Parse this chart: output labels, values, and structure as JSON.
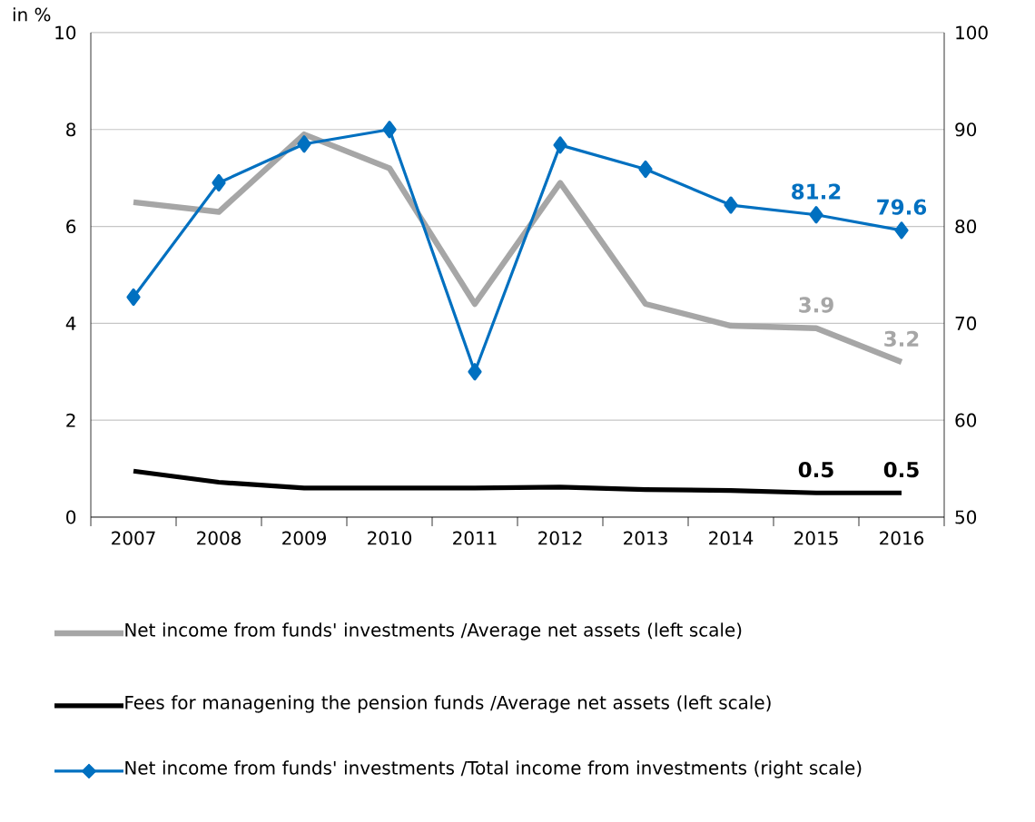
{
  "chart_data": {
    "type": "line",
    "ylabel": "in %",
    "categories": [
      "2007",
      "2008",
      "2009",
      "2010",
      "2011",
      "2012",
      "2013",
      "2014",
      "2015",
      "2016"
    ],
    "series": [
      {
        "name": "Net income from funds' investments /Average net assets (left scale)",
        "color": "#a6a6a6",
        "values": [
          6.5,
          6.3,
          7.9,
          7.2,
          4.4,
          6.9,
          4.4,
          3.95,
          3.9,
          3.2
        ],
        "value_labels": [
          null,
          null,
          null,
          null,
          null,
          null,
          null,
          null,
          "3.9",
          "3.2"
        ],
        "marker": "none"
      },
      {
        "name": "Fees for managening the pension funds /Average net assets (left scale)",
        "color": "#000000",
        "values": [
          0.95,
          0.72,
          0.6,
          0.6,
          0.6,
          0.62,
          0.57,
          0.55,
          0.5,
          0.5
        ],
        "value_labels": [
          null,
          null,
          null,
          null,
          null,
          null,
          null,
          null,
          "0.5",
          "0.5"
        ],
        "marker": "none"
      },
      {
        "name": "Net income from funds' investments /Total income from investments (right scale)",
        "color": "#0070c0",
        "values": [
          72.7,
          84.5,
          88.5,
          90,
          65,
          88.4,
          85.9,
          82.2,
          81.2,
          79.6
        ],
        "value_labels": [
          null,
          null,
          null,
          null,
          null,
          null,
          null,
          null,
          "81.2",
          "79.6"
        ],
        "marker": "diamond",
        "axis": "y2"
      }
    ],
    "ylim": [
      0,
      10
    ],
    "yticks": [
      0,
      2,
      4,
      6,
      8,
      10
    ],
    "y2lim": [
      50,
      100
    ],
    "y2ticks": [
      50,
      60,
      70,
      80,
      90,
      100
    ],
    "grid": "y",
    "legend": "bottom"
  }
}
